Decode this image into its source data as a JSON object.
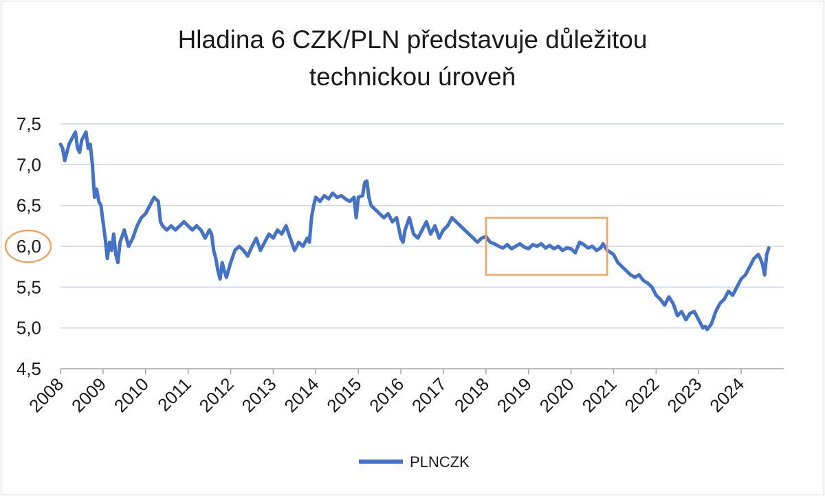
{
  "chart_data": {
    "type": "line",
    "title_lines": [
      "Hladina 6 CZK/PLN představuje důležitou",
      "technickou úroveň"
    ],
    "ylim": [
      4.5,
      7.5
    ],
    "yticks": [
      7.5,
      7.0,
      6.5,
      6.0,
      5.5,
      5.0,
      4.5
    ],
    "ytick_labels": [
      "7,5",
      "7,0",
      "6,5",
      "6,0",
      "5,5",
      "5,0",
      "4,5"
    ],
    "highlighted_ytick": "6,0",
    "xlim": [
      2008,
      2025
    ],
    "xticks": [
      2008,
      2009,
      2010,
      2011,
      2012,
      2013,
      2014,
      2015,
      2016,
      2017,
      2018,
      2019,
      2020,
      2021,
      2022,
      2023,
      2024
    ],
    "xtick_labels": [
      "2008",
      "2009",
      "2010",
      "2011",
      "2012",
      "2013",
      "2014",
      "2015",
      "2016",
      "2017",
      "2018",
      "2019",
      "2020",
      "2021",
      "2022",
      "2023",
      "2024"
    ],
    "grid": "horizontal",
    "legend_position": "bottom-center",
    "highlight_box": {
      "x_range": [
        2018.0,
        2020.85
      ],
      "y_range": [
        5.65,
        6.35
      ]
    },
    "colors": {
      "series": "#4472c4",
      "highlight": "#f4a460",
      "grid": "#c9d5ea",
      "axis": "#a6a6a6"
    },
    "series": [
      {
        "name": "PLNCZK",
        "points": [
          [
            2008.0,
            7.25
          ],
          [
            2008.05,
            7.2
          ],
          [
            2008.1,
            7.05
          ],
          [
            2008.15,
            7.15
          ],
          [
            2008.2,
            7.25
          ],
          [
            2008.25,
            7.3
          ],
          [
            2008.3,
            7.35
          ],
          [
            2008.35,
            7.4
          ],
          [
            2008.4,
            7.2
          ],
          [
            2008.45,
            7.15
          ],
          [
            2008.5,
            7.3
          ],
          [
            2008.55,
            7.35
          ],
          [
            2008.6,
            7.4
          ],
          [
            2008.65,
            7.2
          ],
          [
            2008.7,
            7.25
          ],
          [
            2008.75,
            7.0
          ],
          [
            2008.8,
            6.6
          ],
          [
            2008.85,
            6.7
          ],
          [
            2008.9,
            6.55
          ],
          [
            2008.95,
            6.5
          ],
          [
            2009.0,
            6.3
          ],
          [
            2009.05,
            6.1
          ],
          [
            2009.1,
            5.85
          ],
          [
            2009.15,
            6.05
          ],
          [
            2009.2,
            5.95
          ],
          [
            2009.25,
            6.15
          ],
          [
            2009.3,
            5.9
          ],
          [
            2009.35,
            5.8
          ],
          [
            2009.4,
            6.05
          ],
          [
            2009.5,
            6.2
          ],
          [
            2009.6,
            6.0
          ],
          [
            2009.7,
            6.1
          ],
          [
            2009.8,
            6.25
          ],
          [
            2009.9,
            6.35
          ],
          [
            2010.0,
            6.4
          ],
          [
            2010.1,
            6.5
          ],
          [
            2010.2,
            6.6
          ],
          [
            2010.3,
            6.55
          ],
          [
            2010.35,
            6.3
          ],
          [
            2010.4,
            6.25
          ],
          [
            2010.5,
            6.2
          ],
          [
            2010.6,
            6.25
          ],
          [
            2010.7,
            6.2
          ],
          [
            2010.8,
            6.25
          ],
          [
            2010.9,
            6.3
          ],
          [
            2011.0,
            6.25
          ],
          [
            2011.1,
            6.2
          ],
          [
            2011.2,
            6.25
          ],
          [
            2011.3,
            6.2
          ],
          [
            2011.4,
            6.1
          ],
          [
            2011.5,
            6.2
          ],
          [
            2011.55,
            6.15
          ],
          [
            2011.6,
            5.95
          ],
          [
            2011.65,
            5.85
          ],
          [
            2011.7,
            5.7
          ],
          [
            2011.75,
            5.6
          ],
          [
            2011.8,
            5.8
          ],
          [
            2011.85,
            5.7
          ],
          [
            2011.9,
            5.62
          ],
          [
            2012.0,
            5.8
          ],
          [
            2012.1,
            5.95
          ],
          [
            2012.2,
            6.0
          ],
          [
            2012.3,
            5.95
          ],
          [
            2012.4,
            5.88
          ],
          [
            2012.5,
            6.0
          ],
          [
            2012.6,
            6.1
          ],
          [
            2012.7,
            5.95
          ],
          [
            2012.8,
            6.05
          ],
          [
            2012.9,
            6.15
          ],
          [
            2013.0,
            6.1
          ],
          [
            2013.1,
            6.2
          ],
          [
            2013.2,
            6.15
          ],
          [
            2013.3,
            6.25
          ],
          [
            2013.4,
            6.1
          ],
          [
            2013.5,
            5.95
          ],
          [
            2013.6,
            6.05
          ],
          [
            2013.7,
            6.0
          ],
          [
            2013.8,
            6.1
          ],
          [
            2013.85,
            6.05
          ],
          [
            2013.9,
            6.35
          ],
          [
            2013.95,
            6.5
          ],
          [
            2014.0,
            6.6
          ],
          [
            2014.1,
            6.55
          ],
          [
            2014.2,
            6.62
          ],
          [
            2014.3,
            6.58
          ],
          [
            2014.4,
            6.65
          ],
          [
            2014.5,
            6.6
          ],
          [
            2014.6,
            6.62
          ],
          [
            2014.7,
            6.58
          ],
          [
            2014.8,
            6.55
          ],
          [
            2014.9,
            6.6
          ],
          [
            2014.95,
            6.35
          ],
          [
            2015.0,
            6.6
          ],
          [
            2015.1,
            6.62
          ],
          [
            2015.15,
            6.78
          ],
          [
            2015.2,
            6.8
          ],
          [
            2015.25,
            6.6
          ],
          [
            2015.3,
            6.5
          ],
          [
            2015.4,
            6.45
          ],
          [
            2015.5,
            6.4
          ],
          [
            2015.6,
            6.35
          ],
          [
            2015.7,
            6.4
          ],
          [
            2015.8,
            6.3
          ],
          [
            2015.9,
            6.35
          ],
          [
            2016.0,
            6.1
          ],
          [
            2016.05,
            6.05
          ],
          [
            2016.1,
            6.2
          ],
          [
            2016.2,
            6.35
          ],
          [
            2016.3,
            6.15
          ],
          [
            2016.4,
            6.1
          ],
          [
            2016.5,
            6.2
          ],
          [
            2016.6,
            6.3
          ],
          [
            2016.7,
            6.15
          ],
          [
            2016.8,
            6.25
          ],
          [
            2016.9,
            6.1
          ],
          [
            2017.0,
            6.2
          ],
          [
            2017.1,
            6.25
          ],
          [
            2017.2,
            6.35
          ],
          [
            2017.3,
            6.3
          ],
          [
            2017.4,
            6.25
          ],
          [
            2017.5,
            6.2
          ],
          [
            2017.6,
            6.15
          ],
          [
            2017.7,
            6.1
          ],
          [
            2017.8,
            6.05
          ],
          [
            2017.9,
            6.1
          ],
          [
            2018.0,
            6.12
          ],
          [
            2018.1,
            6.05
          ],
          [
            2018.2,
            6.03
          ],
          [
            2018.3,
            6.0
          ],
          [
            2018.4,
            5.98
          ],
          [
            2018.5,
            6.02
          ],
          [
            2018.6,
            5.97
          ],
          [
            2018.7,
            6.0
          ],
          [
            2018.8,
            6.03
          ],
          [
            2018.9,
            5.99
          ],
          [
            2019.0,
            5.97
          ],
          [
            2019.1,
            6.02
          ],
          [
            2019.2,
            6.0
          ],
          [
            2019.3,
            6.03
          ],
          [
            2019.4,
            5.98
          ],
          [
            2019.5,
            6.01
          ],
          [
            2019.6,
            5.97
          ],
          [
            2019.7,
            6.0
          ],
          [
            2019.8,
            5.95
          ],
          [
            2019.9,
            5.98
          ],
          [
            2020.0,
            5.97
          ],
          [
            2020.1,
            5.92
          ],
          [
            2020.2,
            6.05
          ],
          [
            2020.3,
            6.02
          ],
          [
            2020.4,
            5.98
          ],
          [
            2020.5,
            6.0
          ],
          [
            2020.6,
            5.95
          ],
          [
            2020.7,
            5.98
          ],
          [
            2020.75,
            6.03
          ],
          [
            2020.85,
            5.95
          ],
          [
            2021.0,
            5.9
          ],
          [
            2021.1,
            5.8
          ],
          [
            2021.2,
            5.75
          ],
          [
            2021.3,
            5.7
          ],
          [
            2021.4,
            5.65
          ],
          [
            2021.5,
            5.62
          ],
          [
            2021.6,
            5.65
          ],
          [
            2021.7,
            5.58
          ],
          [
            2021.8,
            5.55
          ],
          [
            2021.9,
            5.5
          ],
          [
            2022.0,
            5.4
          ],
          [
            2022.1,
            5.35
          ],
          [
            2022.2,
            5.28
          ],
          [
            2022.3,
            5.38
          ],
          [
            2022.4,
            5.3
          ],
          [
            2022.5,
            5.15
          ],
          [
            2022.6,
            5.2
          ],
          [
            2022.7,
            5.1
          ],
          [
            2022.8,
            5.18
          ],
          [
            2022.9,
            5.2
          ],
          [
            2023.0,
            5.1
          ],
          [
            2023.1,
            5.0
          ],
          [
            2023.15,
            5.02
          ],
          [
            2023.2,
            4.98
          ],
          [
            2023.3,
            5.05
          ],
          [
            2023.4,
            5.2
          ],
          [
            2023.5,
            5.3
          ],
          [
            2023.6,
            5.35
          ],
          [
            2023.7,
            5.45
          ],
          [
            2023.8,
            5.4
          ],
          [
            2023.9,
            5.5
          ],
          [
            2024.0,
            5.6
          ],
          [
            2024.1,
            5.65
          ],
          [
            2024.2,
            5.75
          ],
          [
            2024.3,
            5.85
          ],
          [
            2024.4,
            5.9
          ],
          [
            2024.45,
            5.85
          ],
          [
            2024.5,
            5.78
          ],
          [
            2024.55,
            5.65
          ],
          [
            2024.6,
            5.9
          ],
          [
            2024.65,
            5.98
          ]
        ]
      }
    ]
  }
}
